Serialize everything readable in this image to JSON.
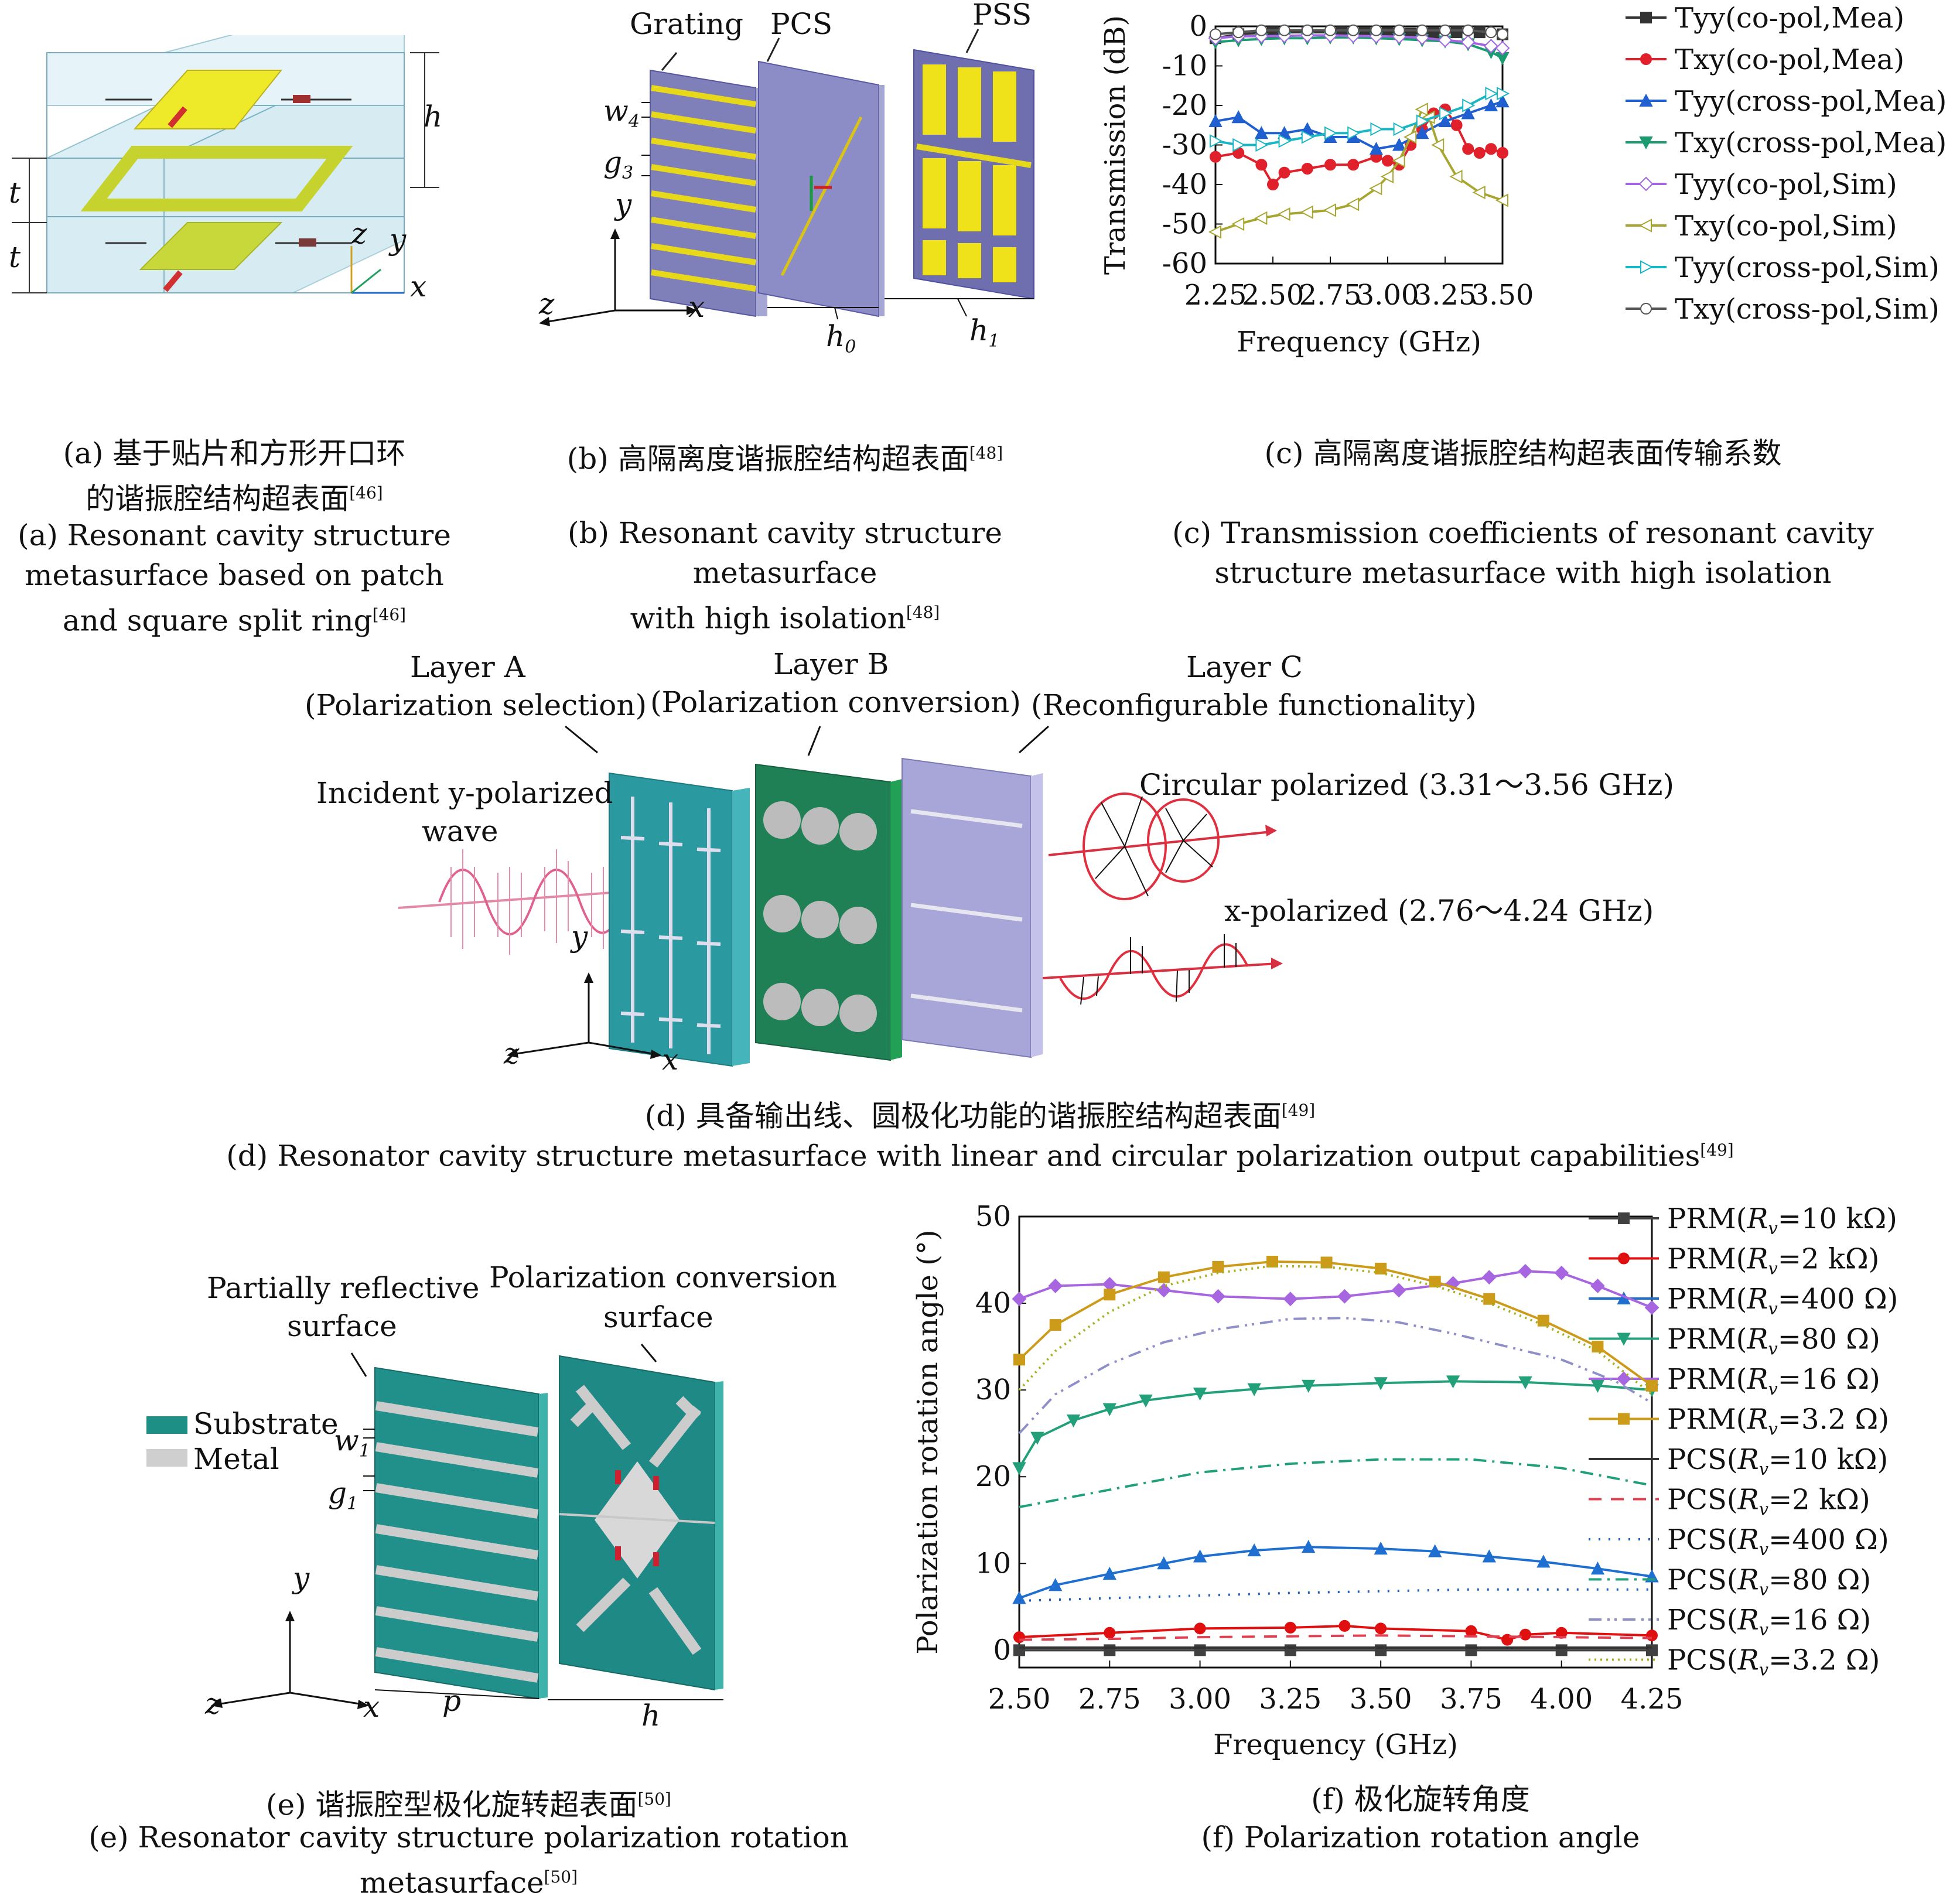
{
  "panels": {
    "a": {
      "caption_cn": [
        "(a) 基于贴片和方形开口环",
        "的谐振腔结构超表面"
      ],
      "caption_cn_ref": "[46]",
      "caption_en": [
        "(a) Resonant cavity structure",
        "metasurface based on patch",
        "and square split ring"
      ],
      "caption_en_ref": "[46]",
      "labels": {
        "h": "h",
        "t1": "t",
        "t2": "t",
        "z": "z",
        "y": "y",
        "x": "x"
      }
    },
    "b": {
      "caption_cn": "(b) 高隔离度谐振腔结构超表面",
      "caption_cn_ref": "[48]",
      "caption_en": [
        "(b) Resonant cavity structure metasurface",
        "with high isolation"
      ],
      "caption_en_ref": "[48]",
      "labels": {
        "grating": "Grating",
        "pcs": "PCS",
        "pss": "PSS",
        "w4": "w",
        "w4_sub": "4",
        "g3": "g",
        "g3_sub": "3",
        "y": "y",
        "z": "z",
        "x": "x",
        "h0": "h",
        "h0_sub": "0",
        "h1": "h",
        "h1_sub": "1"
      }
    },
    "c": {
      "caption_cn": "(c) 高隔离度谐振腔结构超表面传输系数",
      "caption_en": [
        "(c) Transmission coefficients of resonant cavity",
        "structure metasurface with high isolation"
      ]
    },
    "d": {
      "caption_cn": "(d) 具备输出线、圆极化功能的谐振腔结构超表面",
      "caption_cn_ref": "[49]",
      "caption_en": "(d) Resonator cavity structure metasurface with linear and circular polarization output capabilities",
      "caption_en_ref": "[49]",
      "layer_a": [
        "Layer A",
        "(Polarization selection)"
      ],
      "layer_b": [
        "Layer B",
        "(Polarization conversion)"
      ],
      "layer_c": [
        "Layer C",
        "(Reconfigurable functionality)"
      ],
      "incident": [
        "Incident y-polarized",
        "wave"
      ],
      "circular": "Circular polarized (3.31～3.56 GHz)",
      "xpol": "x-polarized (2.76～4.24 GHz)",
      "axes": {
        "y": "y",
        "z": "z",
        "x": "x"
      }
    },
    "e": {
      "caption_cn": "(e) 谐振腔型极化旋转超表面",
      "caption_cn_ref": "[50]",
      "caption_en": "(e) Resonator cavity structure polarization rotation metasurface",
      "caption_en_ref": "[50]",
      "prs": [
        "Partially reflective",
        "surface"
      ],
      "pcs": [
        "Polarization conversion",
        "surface"
      ],
      "legend": [
        "Substrate",
        "Metal"
      ],
      "legend_colors": [
        "#1d8f84",
        "#cfcfcf"
      ],
      "labels": {
        "w1": "w",
        "w1_sub": "1",
        "g1": "g",
        "g1_sub": "1",
        "y": "y",
        "z": "z",
        "x": "x",
        "p": "p",
        "h": "h"
      }
    },
    "f": {
      "caption_cn": "(f) 极化旋转角度",
      "caption_en": "(f) Polarization rotation angle"
    }
  },
  "chart_data": [
    {
      "id": "c",
      "type": "line",
      "xlabel": "Frequency (GHz)",
      "ylabel": "Transmission (dB)",
      "xlim": [
        2.25,
        3.5
      ],
      "ylim": [
        -60,
        0
      ],
      "xticks": [
        "2.25",
        "2.50",
        "2.75",
        "3.00",
        "3.25",
        "3.50"
      ],
      "yticks": [
        "0",
        "-10",
        "-20",
        "-30",
        "-40",
        "-50",
        "-60"
      ],
      "legend_position": "right",
      "series": [
        {
          "name": "Tyy(co-pol,Mea)",
          "color": "#333333",
          "dash": "",
          "marker": "square",
          "x": [
            2.25,
            2.35,
            2.5,
            2.65,
            2.8,
            2.9,
            3.0,
            3.1,
            3.2,
            3.3,
            3.4,
            3.5
          ],
          "y": [
            -3,
            -2,
            -1.5,
            -1.5,
            -1.5,
            -1.6,
            -1.7,
            -1.8,
            -1.6,
            -1.5,
            -1.5,
            -2
          ]
        },
        {
          "name": "Txy(co-pol,Mea)",
          "color": "#e0202a",
          "dash": "",
          "marker": "circle",
          "x": [
            2.25,
            2.35,
            2.45,
            2.5,
            2.55,
            2.65,
            2.75,
            2.85,
            2.95,
            3.0,
            3.05,
            3.1,
            3.15,
            3.2,
            3.25,
            3.3,
            3.35,
            3.4,
            3.45,
            3.5
          ],
          "y": [
            -33,
            -32,
            -35,
            -40,
            -37,
            -36,
            -35,
            -35,
            -33,
            -34,
            -35,
            -30,
            -26,
            -22,
            -21,
            -25,
            -31,
            -32,
            -31,
            -32
          ]
        },
        {
          "name": "Tyy(cross-pol,Mea)",
          "color": "#1f5fcf",
          "dash": "",
          "marker": "triangle-up",
          "x": [
            2.25,
            2.35,
            2.45,
            2.55,
            2.65,
            2.75,
            2.85,
            2.95,
            3.05,
            3.15,
            3.25,
            3.35,
            3.45,
            3.5
          ],
          "y": [
            -24,
            -23,
            -27,
            -27,
            -26,
            -28,
            -28,
            -31,
            -30,
            -27,
            -24,
            -22,
            -20,
            -19
          ]
        },
        {
          "name": "Txy(cross-pol,Mea)",
          "color": "#1a9b71",
          "dash": "",
          "marker": "triangle-down",
          "x": [
            2.25,
            2.35,
            2.45,
            2.55,
            2.65,
            2.75,
            2.85,
            2.95,
            3.05,
            3.15,
            3.25,
            3.35,
            3.45,
            3.5
          ],
          "y": [
            -4,
            -3.5,
            -3.2,
            -3,
            -3,
            -2.8,
            -2.8,
            -3,
            -3.2,
            -3.5,
            -3.8,
            -4.5,
            -6.5,
            -8
          ]
        },
        {
          "name": "Tyy(co-pol,Sim)",
          "color": "#a366e0",
          "dash": "",
          "marker": "diamond-open",
          "x": [
            2.25,
            2.35,
            2.45,
            2.55,
            2.65,
            2.75,
            2.85,
            2.95,
            3.05,
            3.15,
            3.25,
            3.35,
            3.45,
            3.5
          ],
          "y": [
            -3,
            -2.5,
            -2.5,
            -2.4,
            -2.3,
            -2.3,
            -2.4,
            -2.5,
            -2.6,
            -2.9,
            -3.5,
            -4,
            -5,
            -5.5
          ]
        },
        {
          "name": "Txy(co-pol,Sim)",
          "color": "#a8a631",
          "dash": "",
          "marker": "triangle-left-open",
          "x": [
            2.25,
            2.35,
            2.45,
            2.55,
            2.65,
            2.75,
            2.85,
            2.95,
            3.0,
            3.05,
            3.1,
            3.15,
            3.18,
            3.22,
            3.3,
            3.4,
            3.5
          ],
          "y": [
            -52,
            -50,
            -48.5,
            -47.5,
            -47,
            -46.5,
            -45,
            -41,
            -38,
            -34,
            -28,
            -21,
            -23,
            -30,
            -38,
            -42,
            -44
          ]
        },
        {
          "name": "Tyy(cross-pol,Sim)",
          "color": "#19b6c3",
          "dash": "",
          "marker": "triangle-right-open",
          "x": [
            2.25,
            2.35,
            2.45,
            2.55,
            2.65,
            2.75,
            2.85,
            2.95,
            3.05,
            3.15,
            3.25,
            3.35,
            3.45,
            3.5
          ],
          "y": [
            -29,
            -30,
            -30,
            -29,
            -28,
            -27,
            -27,
            -26,
            -26,
            -24,
            -22,
            -20,
            -17,
            -17
          ]
        },
        {
          "name": "Txy(cross-pol,Sim)",
          "color": "#555555",
          "dash": "",
          "marker": "circle-open",
          "x": [
            2.25,
            2.35,
            2.45,
            2.55,
            2.65,
            2.75,
            2.85,
            2.95,
            3.05,
            3.15,
            3.25,
            3.35,
            3.45,
            3.5
          ],
          "y": [
            -2,
            -1.5,
            -1,
            -1,
            -1,
            -1,
            -1,
            -1,
            -1,
            -1,
            -1,
            -1,
            -1.5,
            -2
          ]
        }
      ]
    },
    {
      "id": "f",
      "type": "line",
      "xlabel": "Frequency (GHz)",
      "ylabel": "Polarization rotation angle (°)",
      "xlim": [
        2.5,
        4.25
      ],
      "ylim": [
        -2,
        50
      ],
      "xticks": [
        "2.50",
        "2.75",
        "3.00",
        "3.25",
        "3.50",
        "3.75",
        "4.00",
        "4.25"
      ],
      "yticks": [
        "0",
        "10",
        "20",
        "30",
        "40",
        "50"
      ],
      "legend_position": "right",
      "series": [
        {
          "name": "PRM(Rv=10 kΩ)",
          "legend_parts": [
            "PRM(",
            "R",
            "v",
            "=10 kΩ)"
          ],
          "color": "#404040",
          "dash": "",
          "marker": "square",
          "x": [
            2.5,
            2.75,
            3.0,
            3.25,
            3.5,
            3.75,
            4.0,
            4.25
          ],
          "y": [
            0,
            0,
            0,
            0,
            0,
            0,
            0,
            0
          ]
        },
        {
          "name": "PRM(Rv=2 kΩ)",
          "legend_parts": [
            "PRM(",
            "R",
            "v",
            "=2 kΩ)"
          ],
          "color": "#e01010",
          "dash": "",
          "marker": "circle",
          "x": [
            2.5,
            2.75,
            3.0,
            3.25,
            3.4,
            3.5,
            3.75,
            3.85,
            3.9,
            4.0,
            4.25
          ],
          "y": [
            1.5,
            2,
            2.5,
            2.6,
            2.8,
            2.5,
            2.2,
            1.2,
            1.8,
            2,
            1.7
          ]
        },
        {
          "name": "PRM(Rv=400 Ω)",
          "legend_parts": [
            "PRM(",
            "R",
            "v",
            "=400 Ω)"
          ],
          "color": "#1f6fd0",
          "dash": "",
          "marker": "triangle-up",
          "x": [
            2.5,
            2.6,
            2.75,
            2.9,
            3.0,
            3.15,
            3.3,
            3.5,
            3.65,
            3.8,
            3.95,
            4.1,
            4.25
          ],
          "y": [
            6,
            7.5,
            8.8,
            10,
            10.8,
            11.5,
            11.9,
            11.7,
            11.4,
            10.8,
            10.2,
            9.4,
            8.5
          ]
        },
        {
          "name": "PRM(Rv=80 Ω)",
          "legend_parts": [
            "PRM(",
            "R",
            "v",
            "=80 Ω)"
          ],
          "color": "#22a07a",
          "dash": "",
          "marker": "triangle-down",
          "x": [
            2.5,
            2.55,
            2.65,
            2.75,
            2.85,
            3.0,
            3.15,
            3.3,
            3.5,
            3.7,
            3.9,
            4.1,
            4.25
          ],
          "y": [
            21,
            24.5,
            26.5,
            27.8,
            28.8,
            29.6,
            30.1,
            30.5,
            30.8,
            31,
            30.9,
            30.5,
            30
          ]
        },
        {
          "name": "PRM(Rv=16 Ω)",
          "legend_parts": [
            "PRM(",
            "R",
            "v",
            "=16 Ω)"
          ],
          "color": "#a865e0",
          "dash": "",
          "marker": "diamond",
          "x": [
            2.5,
            2.6,
            2.75,
            2.9,
            3.05,
            3.25,
            3.4,
            3.55,
            3.7,
            3.8,
            3.9,
            4.0,
            4.1,
            4.25
          ],
          "y": [
            40.5,
            42,
            42.2,
            41.5,
            40.8,
            40.5,
            40.8,
            41.5,
            42.3,
            43,
            43.7,
            43.5,
            42,
            39.5
          ]
        },
        {
          "name": "PRM(Rv=3.2 Ω)",
          "legend_parts": [
            "PRM(",
            "R",
            "v",
            "=3.2 Ω)"
          ],
          "color": "#cc9b1a",
          "dash": "",
          "marker": "square",
          "x": [
            2.5,
            2.6,
            2.75,
            2.9,
            3.05,
            3.2,
            3.35,
            3.5,
            3.65,
            3.8,
            3.95,
            4.1,
            4.25
          ],
          "y": [
            33.5,
            37.5,
            41,
            43,
            44.2,
            44.8,
            44.7,
            44,
            42.5,
            40.5,
            38,
            35,
            30.5
          ]
        },
        {
          "name": "PCS(Rv=10 kΩ)",
          "legend_parts": [
            "PCS(",
            "R",
            "v",
            "=10 kΩ)"
          ],
          "color": "#333333",
          "dash": "",
          "marker": "none",
          "x": [
            2.5,
            3.0,
            3.5,
            4.0,
            4.25
          ],
          "y": [
            0.3,
            0.3,
            0.3,
            0.3,
            0.3
          ]
        },
        {
          "name": "PCS(Rv=2 kΩ)",
          "legend_parts": [
            "PCS(",
            "R",
            "v",
            "=2 kΩ)"
          ],
          "color": "#e04050",
          "dash": "22,16",
          "marker": "none",
          "x": [
            2.5,
            2.75,
            3.0,
            3.25,
            3.5,
            3.75,
            4.0,
            4.25
          ],
          "y": [
            1.2,
            1.3,
            1.5,
            1.6,
            1.7,
            1.6,
            1.5,
            1.4
          ]
        },
        {
          "name": "PCS(Rv=400 Ω)",
          "legend_parts": [
            "PCS(",
            "R",
            "v",
            "=400 Ω)"
          ],
          "color": "#2060c0",
          "dash": "3,14",
          "marker": "none",
          "x": [
            2.5,
            2.75,
            3.0,
            3.25,
            3.5,
            3.75,
            4.0,
            4.25
          ],
          "y": [
            5.7,
            6,
            6.3,
            6.6,
            6.8,
            7,
            7,
            7
          ]
        },
        {
          "name": "PCS(Rv=80 Ω)",
          "legend_parts": [
            "PCS(",
            "R",
            "v",
            "=80 Ω)"
          ],
          "color": "#20a07a",
          "dash": "22,10,4,10",
          "marker": "none",
          "x": [
            2.5,
            2.75,
            3.0,
            3.25,
            3.5,
            3.75,
            4.0,
            4.25
          ],
          "y": [
            16.5,
            18.5,
            20.5,
            21.5,
            22,
            22,
            21,
            19
          ]
        },
        {
          "name": "PCS(Rv=16 Ω)",
          "legend_parts": [
            "PCS(",
            "R",
            "v",
            "=16 Ω)"
          ],
          "color": "#8f8fc9",
          "dash": "22,10,4,8,4,10",
          "marker": "none",
          "x": [
            2.5,
            2.6,
            2.75,
            2.9,
            3.05,
            3.25,
            3.4,
            3.55,
            3.7,
            3.85,
            4.0,
            4.15,
            4.25
          ],
          "y": [
            25,
            29.5,
            33,
            35.5,
            37,
            38.2,
            38.3,
            37.8,
            36.5,
            35,
            33.5,
            31,
            28.5
          ]
        },
        {
          "name": "PCS(Rv=3.2 Ω)",
          "legend_parts": [
            "PCS(",
            "R",
            "v",
            "=3.2 Ω)"
          ],
          "color": "#a8b020",
          "dash": "3,7",
          "marker": "none",
          "x": [
            2.5,
            2.6,
            2.75,
            2.9,
            3.05,
            3.2,
            3.35,
            3.5,
            3.65,
            3.8,
            3.95,
            4.1,
            4.25
          ],
          "y": [
            30,
            34.5,
            39,
            42,
            43.5,
            44.3,
            44.2,
            43.5,
            42,
            40,
            37.5,
            34.5,
            29.5
          ]
        }
      ]
    }
  ]
}
